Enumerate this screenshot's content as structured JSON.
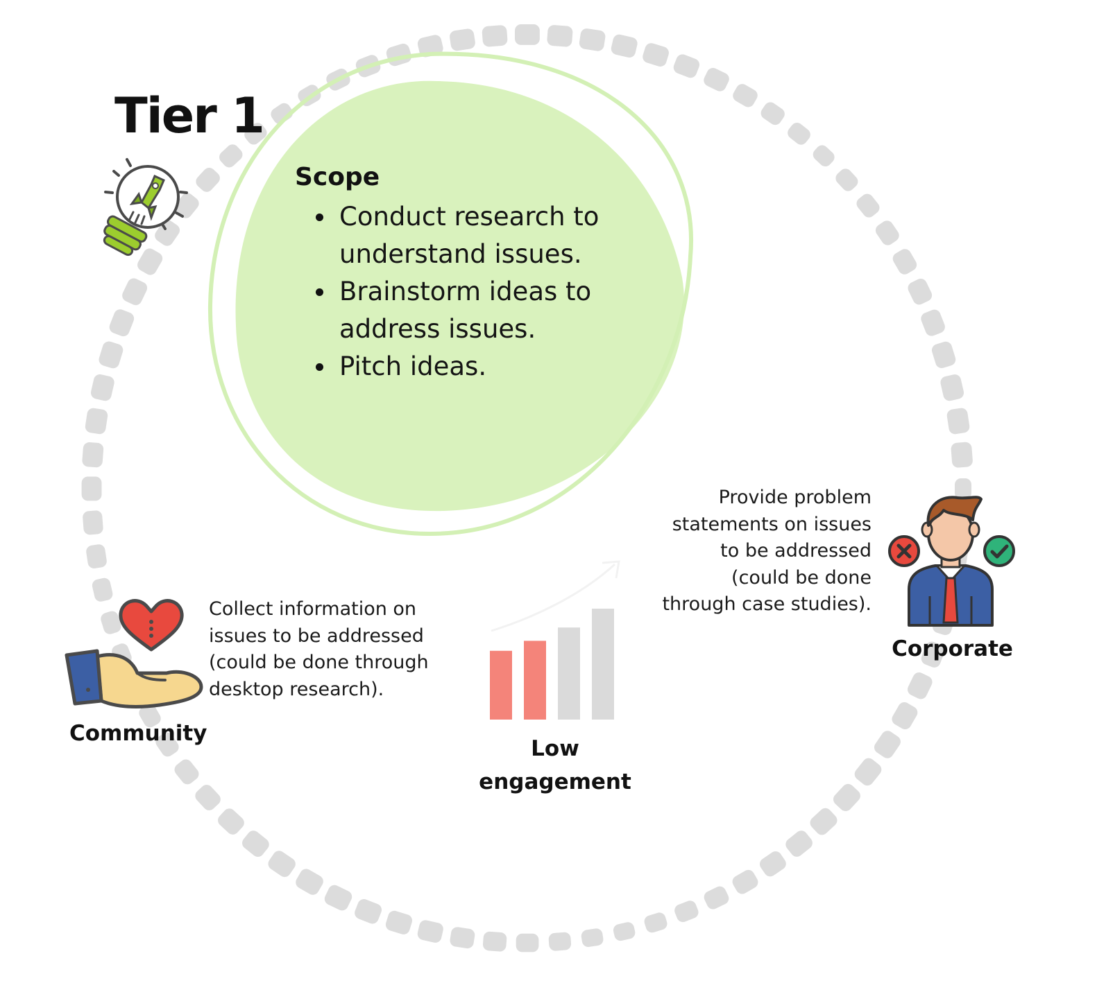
{
  "title": "Tier 1",
  "scope": {
    "heading": "Scope",
    "items": [
      "Conduct research to understand issues.",
      "Brainstorm ideas to address issues.",
      "Pitch ideas."
    ]
  },
  "community": {
    "label": "Community",
    "description": "Collect information on\nissues to be addressed\n(could be done through\ndesktop research)."
  },
  "corporate": {
    "label": "Corporate",
    "description": "Provide problem\nstatements on issues\nto be addressed\n(could be done\nthrough case studies)."
  },
  "engagement": {
    "label": "Low\nengagement",
    "bars": [
      {
        "level": 0.62,
        "color": "#f4847a"
      },
      {
        "level": 0.71,
        "color": "#f4847a"
      },
      {
        "level": 0.83,
        "color": "#dadada"
      },
      {
        "level": 1.0,
        "color": "#dadada"
      }
    ]
  },
  "colors": {
    "blob": "#d9f2bd",
    "blob_outline": "#d3f0b5",
    "ring_dots": "#dcdcdc",
    "bar_highlight": "#f4847a",
    "bar_muted": "#dadada"
  },
  "icons": [
    "lightbulb-rocket-icon",
    "heart-hand-icon",
    "bar-chart-icon",
    "businessman-icon",
    "reject-icon",
    "approve-icon"
  ]
}
